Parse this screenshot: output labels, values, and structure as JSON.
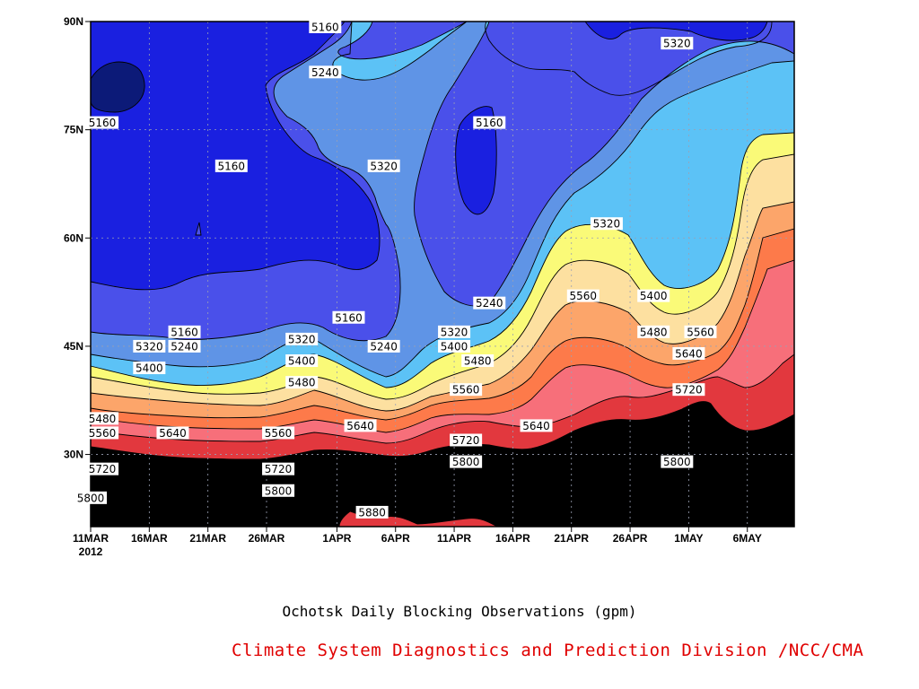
{
  "chart_data": {
    "type": "contour",
    "title": "Ochotsk Daily Blocking Observations (gpm)",
    "credit": "Climate System Diagnostics and Prediction Division /NCC/CMA",
    "x_ticks": [
      "11MAR",
      "16MAR",
      "21MAR",
      "26MAR",
      "1APR",
      "6APR",
      "11APR",
      "16APR",
      "21APR",
      "26APR",
      "1MAY",
      "6MAY"
    ],
    "x_year_label": "2012",
    "y_ticks": [
      "30N",
      "45N",
      "60N",
      "75N",
      "90N"
    ],
    "x_range": [
      "2012-03-11",
      "2012-05-10"
    ],
    "y_range": [
      20,
      90
    ],
    "grid": true,
    "levels": [
      5160,
      5240,
      5320,
      5400,
      5480,
      5560,
      5640,
      5720,
      5800,
      5880
    ],
    "fill_colors": [
      "#0c1a78",
      "#1a20e0",
      "#4a50ea",
      "#5f94e6",
      "#5cc2f6",
      "#fafa78",
      "#fde0a0",
      "#fca56a",
      "#fd7a4a",
      "#f76f7a",
      "#e2383e"
    ],
    "contour_labels": [
      {
        "text": "5160",
        "lon": "near 90N",
        "date": "2012-03-31"
      },
      {
        "text": "5240",
        "lat": 83,
        "date": "2012-03-31"
      },
      {
        "text": "5320",
        "lat": 87,
        "date": "2012-04-30"
      },
      {
        "text": "5160",
        "lat": 76,
        "date": "2012-03-12"
      },
      {
        "text": "5160",
        "lat": 76,
        "date": "2012-04-14"
      },
      {
        "text": "5160",
        "lat": 70,
        "date": "2012-03-23"
      },
      {
        "text": "5320",
        "lat": 70,
        "date": "2012-04-05"
      },
      {
        "text": "5320",
        "lat": 62,
        "date": "2012-04-24"
      },
      {
        "text": "5240",
        "lat": 51,
        "date": "2012-04-14"
      },
      {
        "text": "5560",
        "lat": 52,
        "date": "2012-04-22"
      },
      {
        "text": "5400",
        "lat": 52,
        "date": "2012-04-28"
      },
      {
        "text": "5160",
        "lat": 49,
        "date": "2012-04-02"
      },
      {
        "text": "5160",
        "lat": 47,
        "date": "2012-03-19"
      },
      {
        "text": "5320",
        "lat": 47,
        "date": "2012-04-11"
      },
      {
        "text": "5480",
        "lat": 47,
        "date": "2012-04-28"
      },
      {
        "text": "5560",
        "lat": 47,
        "date": "2012-05-02"
      },
      {
        "text": "5320",
        "lat": 46,
        "date": "2012-03-29"
      },
      {
        "text": "5320",
        "lat": 45,
        "date": "2012-03-16"
      },
      {
        "text": "5240",
        "lat": 45,
        "date": "2012-03-19"
      },
      {
        "text": "5400",
        "lat": 45,
        "date": "2012-04-11"
      },
      {
        "text": "5240",
        "lat": 45,
        "date": "2012-04-05"
      },
      {
        "text": "5640",
        "lat": 44,
        "date": "2012-05-01"
      },
      {
        "text": "5480",
        "lat": 43,
        "date": "2012-04-13"
      },
      {
        "text": "5400",
        "lat": 43,
        "date": "2012-03-29"
      },
      {
        "text": "5400",
        "lat": 42,
        "date": "2012-03-16"
      },
      {
        "text": "5480",
        "lat": 40,
        "date": "2012-03-29"
      },
      {
        "text": "5560",
        "lat": 39,
        "date": "2012-04-12"
      },
      {
        "text": "5720",
        "lat": 39,
        "date": "2012-05-01"
      },
      {
        "text": "5480",
        "lat": 35,
        "date": "2012-03-12"
      },
      {
        "text": "5640",
        "lat": 34,
        "date": "2012-04-03"
      },
      {
        "text": "5640",
        "lat": 34,
        "date": "2012-04-18"
      },
      {
        "text": "5640",
        "lat": 33,
        "date": "2012-03-18"
      },
      {
        "text": "5560",
        "lat": 33,
        "date": "2012-03-12"
      },
      {
        "text": "5560",
        "lat": 33,
        "date": "2012-03-27"
      },
      {
        "text": "5720",
        "lat": 32,
        "date": "2012-04-12"
      },
      {
        "text": "5800",
        "lat": 29,
        "date": "2012-04-12"
      },
      {
        "text": "5800",
        "lat": 29,
        "date": "2012-04-30"
      },
      {
        "text": "5720",
        "lat": 28,
        "date": "2012-03-12"
      },
      {
        "text": "5720",
        "lat": 28,
        "date": "2012-03-27"
      },
      {
        "text": "5800",
        "lat": 25,
        "date": "2012-03-27"
      },
      {
        "text": "5800",
        "lat": 24,
        "date": "2012-03-11"
      },
      {
        "text": "5880",
        "lat": 22,
        "date": "2012-04-04"
      }
    ]
  }
}
